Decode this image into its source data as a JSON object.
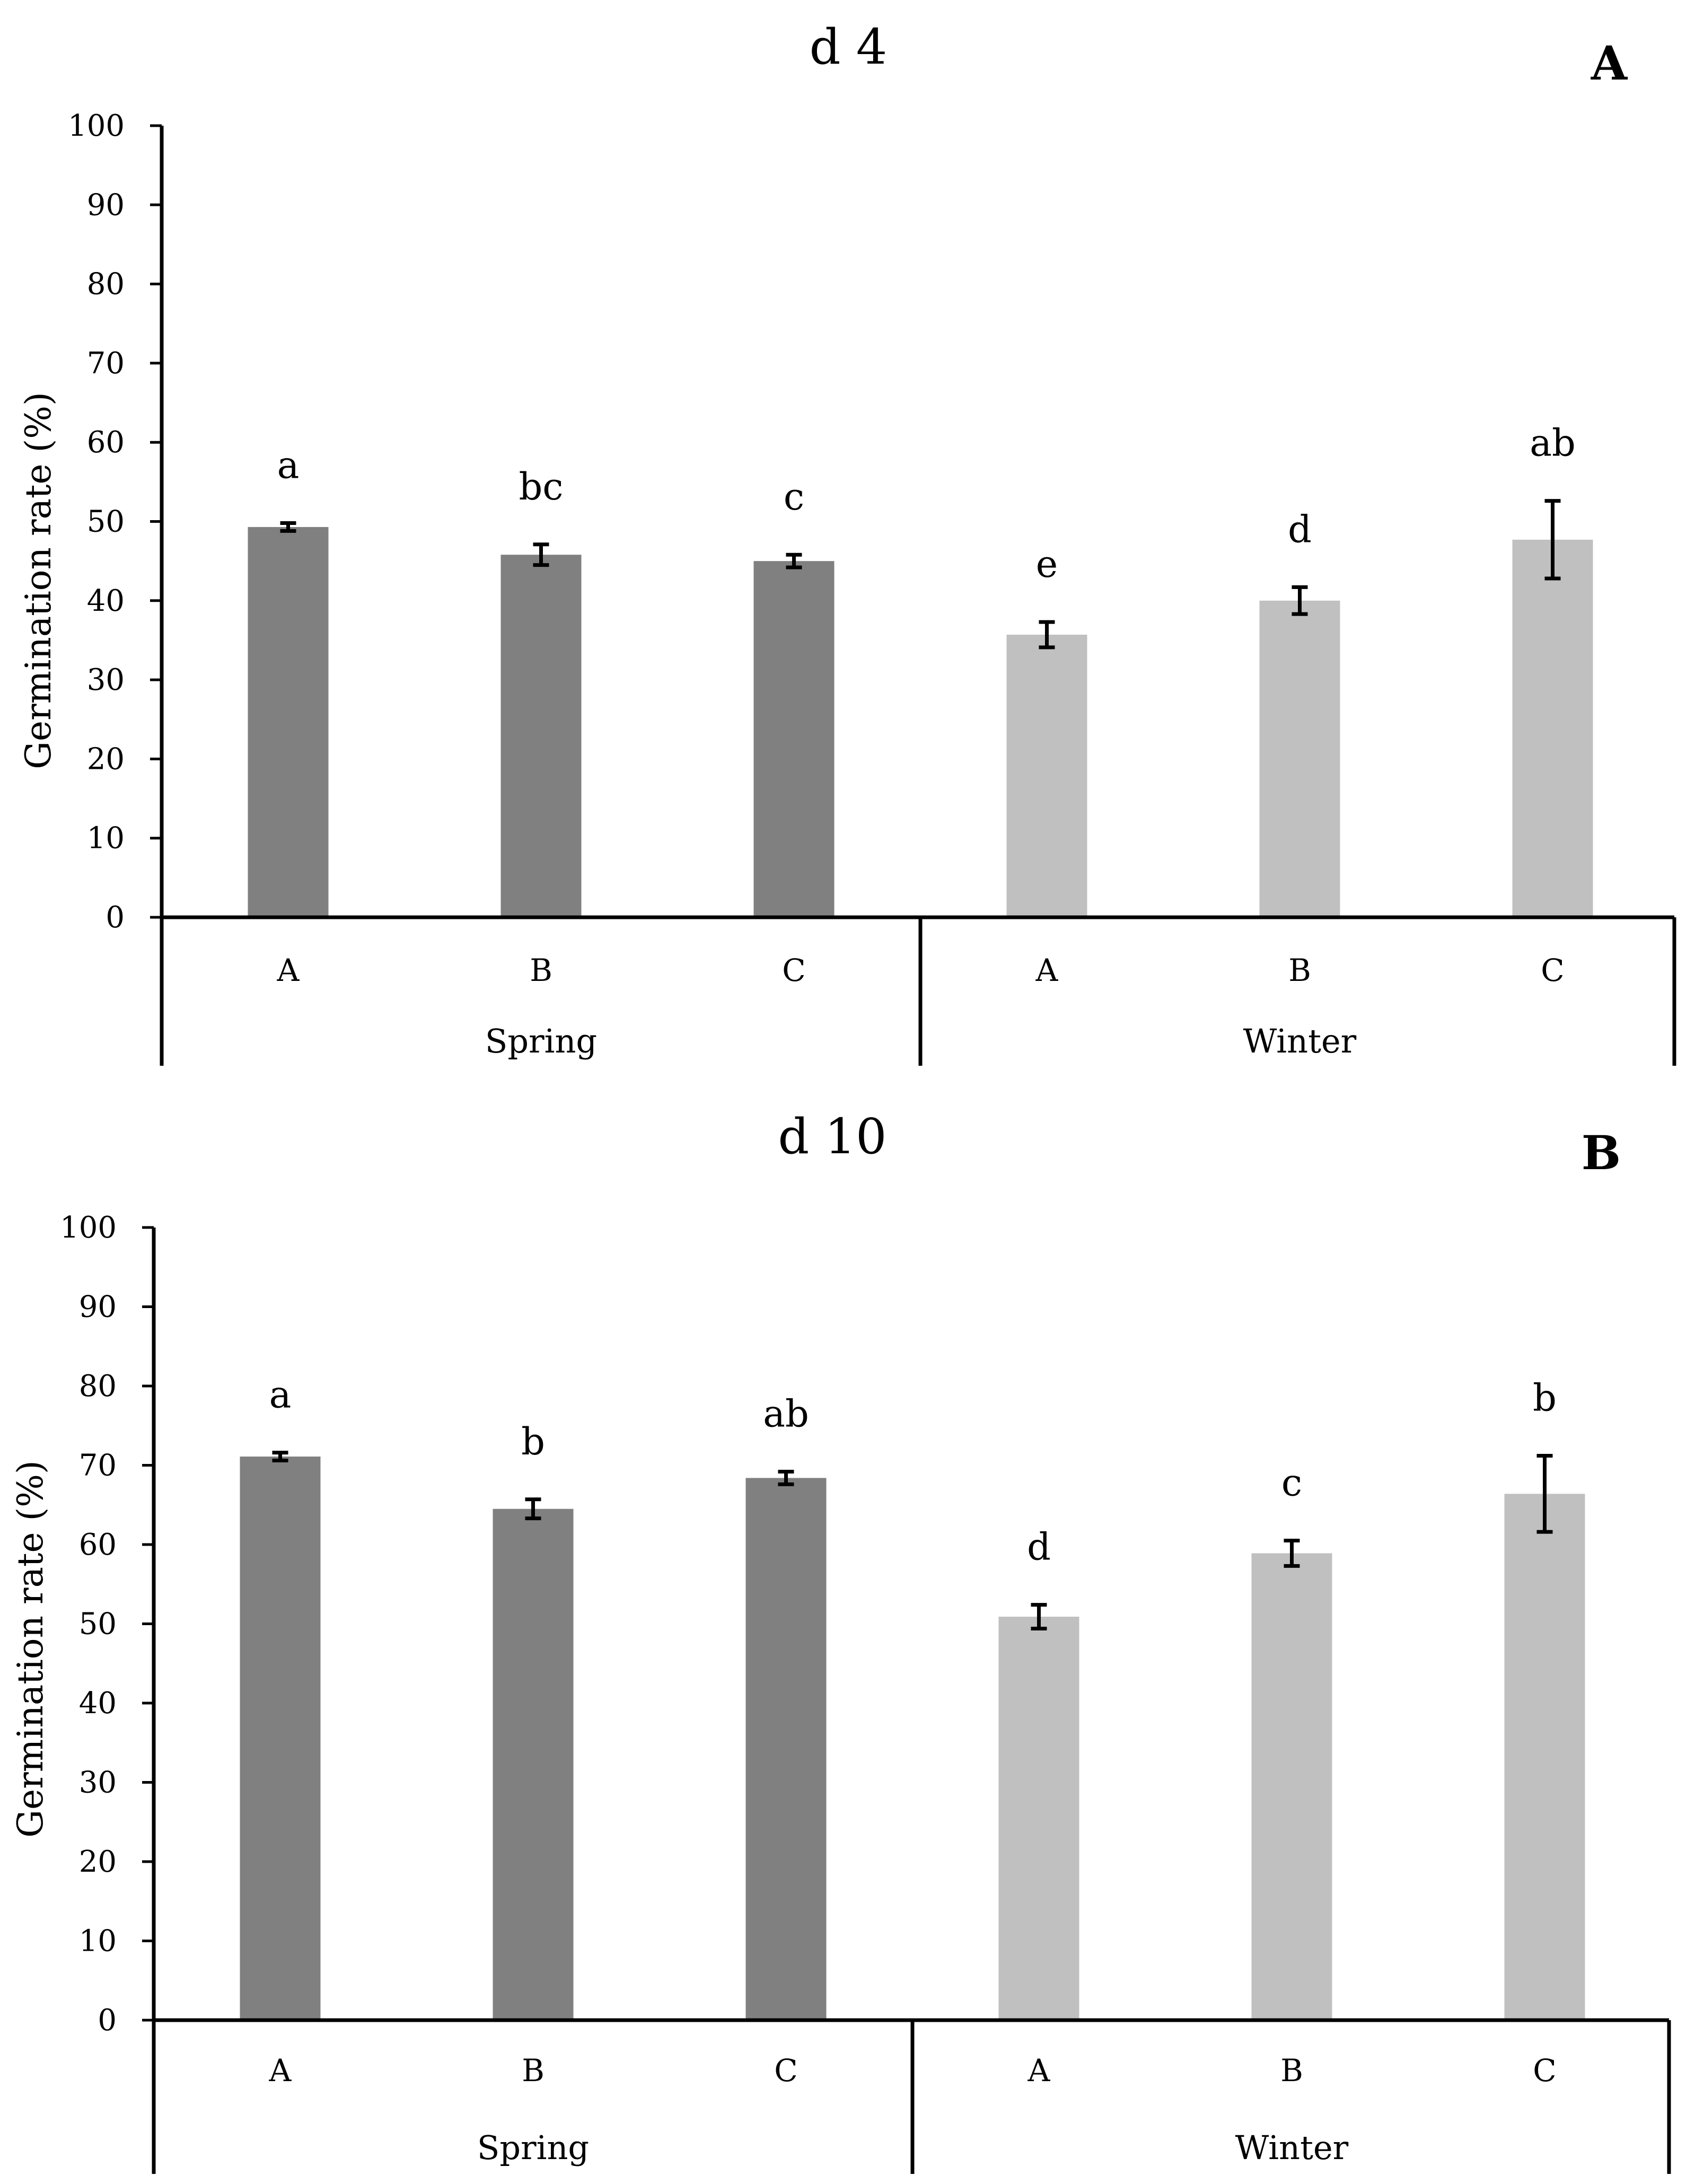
{
  "chart_data": [
    {
      "type": "bar",
      "panel": "A",
      "title": "d 4",
      "xlabel": "",
      "ylabel": "Germination rate (%)",
      "ylim": [
        0,
        100
      ],
      "yticks": [
        0,
        10,
        20,
        30,
        40,
        50,
        60,
        70,
        80,
        90,
        100
      ],
      "groups": [
        "Spring",
        "Winter"
      ],
      "categories": [
        "A",
        "B",
        "C",
        "A",
        "B",
        "C"
      ],
      "values": [
        49.3,
        45.8,
        45.0,
        35.7,
        40.0,
        47.7
      ],
      "errors": [
        0.5,
        1.3,
        0.8,
        1.6,
        1.7,
        4.9
      ],
      "significance": [
        "a",
        "bc",
        "c",
        "e",
        "d",
        "ab"
      ],
      "colors": {
        "Spring": "#808080",
        "Winter": "#c0c0c0"
      }
    },
    {
      "type": "bar",
      "panel": "B",
      "title": "d 10",
      "xlabel": "",
      "ylabel": "Germination rate (%)",
      "ylim": [
        0,
        100
      ],
      "yticks": [
        0,
        10,
        20,
        30,
        40,
        50,
        60,
        70,
        80,
        90,
        100
      ],
      "groups": [
        "Spring",
        "Winter"
      ],
      "categories": [
        "A",
        "B",
        "C",
        "A",
        "B",
        "C"
      ],
      "values": [
        71.1,
        64.5,
        68.4,
        50.9,
        58.9,
        66.4
      ],
      "errors": [
        0.5,
        1.2,
        0.8,
        1.5,
        1.6,
        4.8
      ],
      "significance": [
        "a",
        "b",
        "ab",
        "d",
        "c",
        "b"
      ],
      "colors": {
        "Spring": "#808080",
        "Winter": "#c0c0c0"
      }
    }
  ]
}
